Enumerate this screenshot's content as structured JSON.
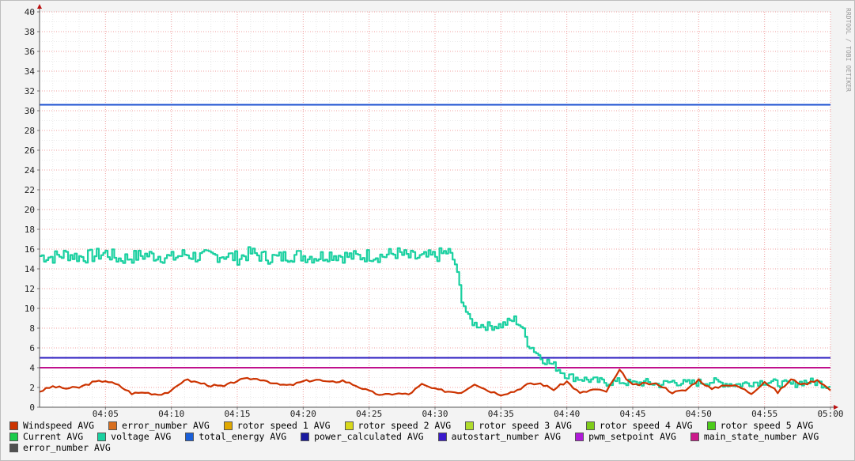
{
  "watermark": "RRDTOOL / TOBI OETIKER",
  "chart_data": {
    "type": "line",
    "xlabel": "",
    "ylabel": "",
    "x_tick_labels": [
      "04:05",
      "04:10",
      "04:15",
      "04:20",
      "04:25",
      "04:30",
      "04:35",
      "04:40",
      "04:45",
      "04:50",
      "04:55",
      "05:00"
    ],
    "x_range": [
      "04:00",
      "05:00"
    ],
    "y_ticks": [
      0,
      2,
      4,
      6,
      8,
      10,
      12,
      14,
      16,
      18,
      20,
      22,
      24,
      26,
      28,
      30,
      32,
      34,
      36,
      38,
      40
    ],
    "ylim": [
      0,
      40
    ],
    "grid": true,
    "legend_position": "bottom",
    "legend": [
      {
        "name": "Windspeed AVG",
        "color": "#cc3300"
      },
      {
        "name": "error_number AVG",
        "color": "#d86f1f"
      },
      {
        "name": "rotor speed 1 AVG",
        "color": "#e0a800"
      },
      {
        "name": "rotor speed 2 AVG",
        "color": "#d8d81a"
      },
      {
        "name": "rotor speed 3 AVG",
        "color": "#b0dc2c"
      },
      {
        "name": "rotor speed 4 AVG",
        "color": "#7fcc1a"
      },
      {
        "name": "rotor speed 5 AVG",
        "color": "#4ccc1a"
      },
      {
        "name": "Current AVG",
        "color": "#1acc4c"
      },
      {
        "name": "voltage AVG",
        "color": "#1ad0a0"
      },
      {
        "name": "total_energy AVG",
        "color": "#1a5fd8"
      },
      {
        "name": "power_calculated AVG",
        "color": "#1a1aa0"
      },
      {
        "name": "autostart_number AVG",
        "color": "#3a1acc"
      },
      {
        "name": "pwm_setpoint AVG",
        "color": "#b01ad8"
      },
      {
        "name": "main_state_number AVG",
        "color": "#cc1a8c"
      },
      {
        "name": "error_number AVG",
        "color": "#505050"
      }
    ],
    "series": [
      {
        "name": "total_energy AVG",
        "color": "#1a4fd0",
        "x_minutes": [
          0,
          60
        ],
        "values": [
          30.6,
          30.6
        ]
      },
      {
        "name": "autostart_number AVG",
        "color": "#2a1ac0",
        "x_minutes": [
          0,
          60
        ],
        "values": [
          5.0,
          5.0
        ]
      },
      {
        "name": "main_state_number AVG",
        "color": "#c0108c",
        "x_minutes": [
          0,
          60
        ],
        "values": [
          4.0,
          4.0
        ]
      },
      {
        "name": "voltage AVG",
        "color": "#1ad0a0",
        "x_minutes": [
          0,
          1,
          2,
          3,
          4,
          5,
          6,
          7,
          8,
          9,
          10,
          11,
          12,
          13,
          14,
          15,
          16,
          17,
          18,
          19,
          20,
          21,
          22,
          23,
          24,
          25,
          26,
          27,
          28,
          29,
          30,
          30.5,
          31,
          31.5,
          32,
          32.5,
          33,
          34,
          35,
          35.5,
          36,
          36.5,
          37,
          37.5,
          38,
          38.5,
          39,
          39.5,
          40,
          40.5,
          41,
          42,
          43,
          44,
          45,
          46,
          47,
          48,
          49,
          50,
          51,
          52,
          53,
          54,
          55,
          56,
          57,
          58,
          59,
          60
        ],
        "values": [
          15.3,
          15.2,
          15.5,
          15.2,
          15.3,
          15.6,
          15.0,
          15.2,
          15.4,
          15.3,
          15.1,
          15.5,
          15.2,
          15.3,
          15.4,
          15.1,
          15.6,
          15.2,
          15.1,
          15.4,
          15.3,
          15.2,
          15.5,
          15.3,
          15.2,
          15.4,
          15.3,
          15.6,
          15.2,
          15.1,
          15.3,
          15.5,
          15.8,
          14.5,
          11.0,
          9.0,
          8.4,
          8.2,
          8.3,
          8.6,
          8.9,
          8.2,
          6.5,
          5.8,
          5.0,
          4.6,
          4.2,
          3.7,
          3.2,
          3.0,
          2.9,
          2.7,
          2.5,
          2.6,
          2.4,
          2.5,
          2.3,
          2.6,
          2.4,
          2.5,
          2.6,
          2.4,
          2.3,
          2.5,
          2.6,
          2.4,
          2.3,
          2.6,
          2.5,
          2.1
        ]
      },
      {
        "name": "Windspeed AVG",
        "color": "#cc3300",
        "x_minutes": [
          0,
          1,
          2,
          3,
          4,
          5,
          6,
          7,
          8,
          9,
          10,
          11,
          12,
          13,
          14,
          15,
          16,
          17,
          18,
          19,
          20,
          21,
          22,
          23,
          24,
          25,
          26,
          27,
          28,
          29,
          30,
          31,
          32,
          33,
          34,
          35,
          36,
          37,
          38,
          39,
          40,
          41,
          42,
          43,
          44,
          45,
          46,
          47,
          48,
          49,
          50,
          51,
          52,
          53,
          54,
          55,
          56,
          57,
          58,
          59,
          60
        ],
        "values": [
          1.6,
          2.1,
          1.9,
          2.0,
          2.5,
          2.7,
          2.2,
          1.4,
          1.5,
          1.3,
          1.6,
          2.8,
          2.5,
          2.2,
          2.1,
          2.7,
          2.9,
          2.8,
          2.3,
          2.2,
          2.6,
          2.8,
          2.5,
          2.7,
          2.2,
          1.6,
          1.2,
          1.4,
          1.3,
          2.3,
          1.8,
          1.6,
          1.5,
          2.4,
          1.7,
          1.3,
          1.6,
          2.3,
          2.4,
          1.8,
          2.6,
          1.4,
          1.8,
          1.6,
          3.7,
          2.2,
          2.4,
          2.3,
          1.5,
          1.7,
          2.8,
          1.8,
          2.3,
          2.1,
          1.4,
          2.6,
          1.5,
          2.8,
          2.3,
          2.8,
          1.7
        ]
      }
    ]
  }
}
